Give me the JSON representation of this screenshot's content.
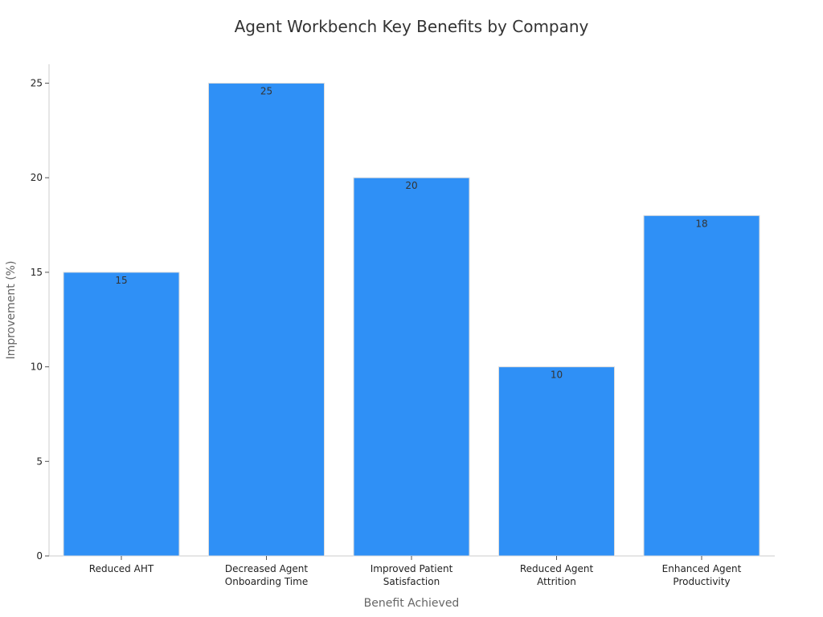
{
  "chart_data": {
    "type": "bar",
    "title": "Agent Workbench Key Benefits by Company",
    "xlabel": "Benefit Achieved",
    "ylabel": "Improvement (%)",
    "categories": [
      [
        "Reduced AHT"
      ],
      [
        "Decreased Agent",
        "Onboarding Time"
      ],
      [
        "Improved Patient",
        "Satisfaction"
      ],
      [
        "Reduced Agent",
        "Attrition"
      ],
      [
        "Enhanced Agent",
        "Productivity"
      ]
    ],
    "values": [
      15,
      25,
      20,
      10,
      18
    ],
    "ylim": [
      0,
      26
    ],
    "yticks": [
      0,
      5,
      10,
      15,
      20,
      25
    ],
    "grid": false,
    "legend": "none",
    "bar_color": "#2f90f6",
    "bar_edge_color": "#dddddd"
  }
}
